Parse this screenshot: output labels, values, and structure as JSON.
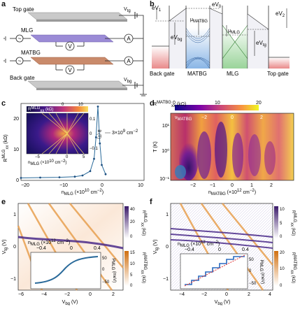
{
  "panels": {
    "a": "a",
    "b": "b",
    "c": "c",
    "d": "d",
    "e": "e",
    "f": "f"
  },
  "panel_a": {
    "top_gate": "Top gate",
    "mlg": "MLG",
    "matbg": "MATBG",
    "back_gate": "Back gate",
    "v_tg": "V",
    "v_tg_sub": "tg",
    "v_bg": "V",
    "v_bg_sub": "bg",
    "ammeter": "A",
    "voltmeter": "V",
    "source": "~"
  },
  "panel_b": {
    "ev1": "eV",
    "ev1_sub": "1",
    "ev0": "eV",
    "ev0_sub": "0",
    "ev2": "eV",
    "ev2_sub": "2",
    "evbg": "eV",
    "evbg_sub": "bg",
    "evtg": "eV",
    "evtg_sub": "tg",
    "mu_matbg": "μ",
    "mu_matbg_sub": "MATBG",
    "mu_mlg": "μ",
    "mu_mlg_sub": "MLG",
    "back_gate": "Back gate",
    "matbg": "MATBG",
    "mlg": "MLG",
    "top_gate": "Top gate"
  },
  "panel_c": {
    "ylabel": "R",
    "ylabel_sup": "MLG",
    "ylabel_sub": "xx",
    "ylabel_unit": " (kΩ)",
    "xlabel": "n",
    "xlabel_sub": "MLG",
    "xlabel_unit": " (×10",
    "xlabel_exp": "10",
    "xlabel_unit2": " cm",
    "xlabel_exp2": "−2",
    ")": ")",
    "yticks": [
      "0",
      "10",
      "20"
    ],
    "xticks": [
      "−20",
      "−10",
      "0",
      "10"
    ],
    "annotation": "3×10",
    "annotation_exp": "9",
    "annotation_unit": " cm",
    "annotation_exp2": "−2",
    "inset": {
      "cbar_label": "R",
      "cbar_sup": "MLG",
      "cbar_sub": "xx",
      "cbar_unit": " (kΩ)",
      "cbar_ticks": [
        "0",
        "10"
      ],
      "ylabel": "B (T)",
      "yticks": [
        "0.1",
        "0",
        "−0.1"
      ],
      "xlabel": "n",
      "xlabel_sub": "MLG",
      "xlabel_unit": " (×10",
      "xlabel_exp": "10",
      "xlabel_unit2": " cm",
      "xlabel_exp2": "−2",
      ")": ")",
      "xticks": [
        "−5",
        "0",
        "5"
      ]
    },
    "colors": {
      "line": "#2a6a9a",
      "marker": "#1d4f80"
    }
  },
  "panel_d": {
    "cbar_label": "R",
    "cbar_sup": "MATBG",
    "cbar_sub": "xx",
    "cbar_unit": " (kΩ)",
    "cbar_ticks": [
      "0",
      "10",
      "20"
    ],
    "top_label": "ν",
    "top_sub": "MATBG",
    "nu_ticks": [
      "−2",
      "0",
      "2"
    ],
    "ylabel": "T (K)",
    "yticks": [
      "10",
      "10",
      "10",
      "10"
    ],
    "yexp": [
      "1",
      "0",
      "−1"
    ],
    "ytick_labels": [
      "10¹",
      "10⁰",
      "10⁻¹"
    ],
    "xlabel": "n",
    "xlabel_sub": "MATBG",
    "xlabel_unit": " (×10",
    "xlabel_exp": "12",
    "xlabel_unit2": " cm",
    "xlabel_exp2": "−2",
    ")": ")",
    "xticks": [
      "−2",
      "−1",
      "0",
      "1",
      "2"
    ]
  },
  "panel_e": {
    "ylabel": "V",
    "ylabel_sub": "tg",
    "ylabel_unit": " (V)",
    "yticks": [
      "1",
      "0",
      "−1"
    ],
    "xlabel": "V",
    "xlabel_sub": "bg",
    "xlabel_unit": " (V)",
    "xticks": [
      "−6",
      "−4",
      "−2",
      "0",
      "2"
    ],
    "top_axis": "n",
    "top_sub": "MLG",
    "top_unit": " (×10",
    "top_exp": "12",
    "top_unit2": " cm",
    "top_exp2": "−2",
    ")": ")",
    "top_ticks": [
      "−0.4",
      "0",
      "0.4"
    ],
    "cbar1_label": "R",
    "cbar1_sup": "MLG",
    "cbar1_sub": "xx",
    "cbar1_unit": " (kΩ)",
    "cbar1_ticks": [
      "40",
      "20",
      "0"
    ],
    "cbar2_label": "R",
    "cbar2_sup": "MATBG",
    "cbar2_sub": "xx",
    "cbar2_unit": " (kΩ)",
    "cbar2_ticks": [
      "15",
      "10",
      "5",
      "0"
    ],
    "inset": {
      "ylabel": "μ",
      "ylabel_sub": "MLG",
      "ylabel_unit": " (meV)",
      "yticks": [
        "50",
        "0",
        "−50"
      ]
    }
  },
  "panel_f": {
    "ylabel": "V",
    "ylabel_sub": "tg",
    "ylabel_unit": " (V)",
    "yticks": [
      "1",
      "0",
      "−1"
    ],
    "xlabel": "V",
    "xlabel_sub": "bg",
    "xlabel_unit": " (V)",
    "xticks": [
      "−4",
      "−2",
      "0",
      "2",
      "4"
    ],
    "top_axis": "n",
    "top_sub": "MLG",
    "top_unit": " (×10",
    "top_exp": "12",
    "top_unit2": " cm",
    "top_exp2": "−2",
    ")": ")",
    "top_ticks": [
      "−0.4",
      "0",
      "0.4"
    ],
    "cbar1_label": "R",
    "cbar1_sup": "MLG",
    "cbar1_sub": "xx",
    "cbar1_unit": " (kΩ)",
    "cbar1_ticks": [
      "10",
      "5",
      "0"
    ],
    "cbar2_label": "R",
    "cbar2_sup": "MATBG",
    "cbar2_sub": "xx",
    "cbar2_unit": " (kΩ)",
    "cbar2_ticks": [
      "20",
      "10",
      "0"
    ],
    "inset": {
      "ylabel": "μ",
      "ylabel_sub": "MLG",
      "ylabel_unit": " (meV)",
      "yticks": [
        "50",
        "0",
        "−50"
      ]
    }
  },
  "chart_data": [
    {
      "type": "line",
      "panel": "c",
      "xlabel": "n_MLG (×10^10 cm^-2)",
      "ylabel": "R_xx^MLG (kΩ)",
      "xlim": [
        -20,
        12
      ],
      "ylim": [
        0,
        25
      ],
      "x": [
        -20,
        -15,
        -10,
        -6,
        -4,
        -2,
        -1,
        -0.5,
        0,
        0.5,
        1,
        2
      ],
      "y": [
        0.8,
        0.9,
        1.0,
        1.2,
        1.6,
        3,
        7,
        14,
        24,
        12,
        5,
        2
      ],
      "annotation": "3×10^9 cm^-2"
    },
    {
      "type": "heatmap",
      "panel": "d",
      "xlabel": "n_MATBG (×10^12 cm^-2)",
      "ylabel": "T (K)",
      "xlim": [
        -2.8,
        2.8
      ],
      "ylim": [
        0.1,
        60
      ],
      "yscale": "log",
      "colorbar": {
        "label": "R_xx^MATBG (kΩ)",
        "range": [
          0,
          20
        ]
      }
    },
    {
      "type": "heatmap",
      "panel": "e",
      "xlabel": "V_bg (V)",
      "ylabel": "V_tg (V)",
      "xlim": [
        -6,
        3
      ],
      "ylim": [
        -1.4,
        1.4
      ]
    },
    {
      "type": "heatmap",
      "panel": "f",
      "xlabel": "V_bg (V)",
      "ylabel": "V_tg (V)",
      "xlim": [
        -5,
        4
      ],
      "ylim": [
        -1.4,
        1.4
      ]
    }
  ]
}
